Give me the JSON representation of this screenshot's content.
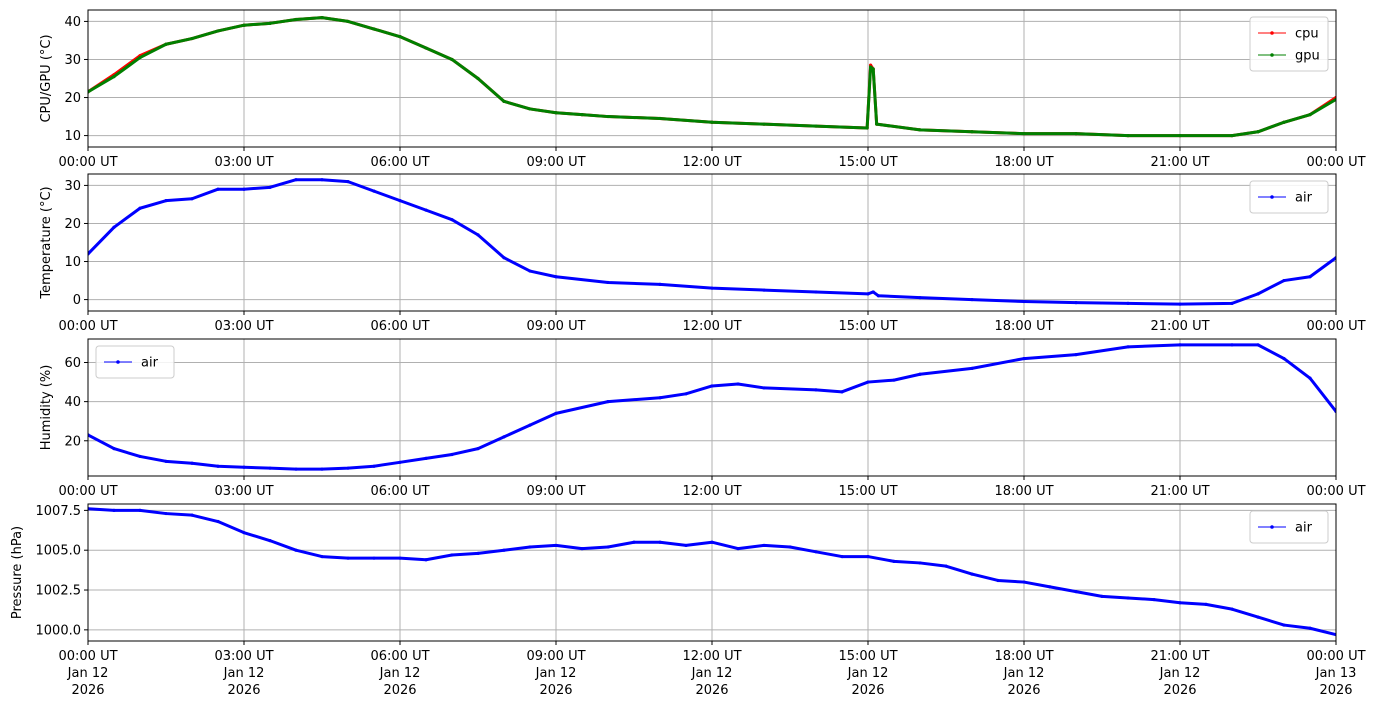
{
  "chart_data": [
    {
      "type": "line",
      "ylabel": "CPU/GPU (°C)",
      "xlim": [
        "2026-01-12T00:00",
        "2026-01-13T00:00"
      ],
      "ylim": [
        7,
        43
      ],
      "yticks": [
        10,
        20,
        30,
        40
      ],
      "grid": true,
      "legend": "top-right",
      "series": [
        {
          "name": "cpu",
          "color": "#ff0000",
          "x": [
            "2026-01-12T00:00",
            "2026-01-12T00:30",
            "2026-01-12T01:00",
            "2026-01-12T01:30",
            "2026-01-12T02:00",
            "2026-01-12T02:30",
            "2026-01-12T03:00",
            "2026-01-12T03:30",
            "2026-01-12T04:00",
            "2026-01-12T04:30",
            "2026-01-12T05:00",
            "2026-01-12T05:30",
            "2026-01-12T06:00",
            "2026-01-12T06:30",
            "2026-01-12T07:00",
            "2026-01-12T07:30",
            "2026-01-12T08:00",
            "2026-01-12T08:30",
            "2026-01-12T09:00",
            "2026-01-12T09:30",
            "2026-01-12T10:00",
            "2026-01-12T11:00",
            "2026-01-12T12:00",
            "2026-01-12T13:00",
            "2026-01-12T14:00",
            "2026-01-12T14:59",
            "2026-01-12T15:03",
            "2026-01-12T15:06",
            "2026-01-12T15:10",
            "2026-01-12T16:00",
            "2026-01-12T17:00",
            "2026-01-12T18:00",
            "2026-01-12T19:00",
            "2026-01-12T20:00",
            "2026-01-12T21:00",
            "2026-01-12T22:00",
            "2026-01-12T22:30",
            "2026-01-12T23:00",
            "2026-01-12T23:30",
            "2026-01-13T00:00"
          ],
          "values": [
            21.5,
            26,
            31,
            34,
            35.5,
            37.5,
            39,
            39.5,
            40.5,
            41,
            40,
            38,
            36,
            33,
            30,
            25,
            19,
            17,
            16,
            15.5,
            15,
            14.5,
            13.5,
            13,
            12.5,
            12,
            28.5,
            27.5,
            13,
            11.5,
            11,
            10.5,
            10.5,
            10,
            10,
            10,
            11,
            13.5,
            15.5,
            20
          ]
        },
        {
          "name": "gpu",
          "color": "#008000",
          "x": [
            "2026-01-12T00:00",
            "2026-01-12T00:30",
            "2026-01-12T01:00",
            "2026-01-12T01:30",
            "2026-01-12T02:00",
            "2026-01-12T02:30",
            "2026-01-12T03:00",
            "2026-01-12T03:30",
            "2026-01-12T04:00",
            "2026-01-12T04:30",
            "2026-01-12T05:00",
            "2026-01-12T05:30",
            "2026-01-12T06:00",
            "2026-01-12T06:30",
            "2026-01-12T07:00",
            "2026-01-12T07:30",
            "2026-01-12T08:00",
            "2026-01-12T08:30",
            "2026-01-12T09:00",
            "2026-01-12T09:30",
            "2026-01-12T10:00",
            "2026-01-12T11:00",
            "2026-01-12T12:00",
            "2026-01-12T13:00",
            "2026-01-12T14:00",
            "2026-01-12T14:59",
            "2026-01-12T15:03",
            "2026-01-12T15:06",
            "2026-01-12T15:10",
            "2026-01-12T16:00",
            "2026-01-12T17:00",
            "2026-01-12T18:00",
            "2026-01-12T19:00",
            "2026-01-12T20:00",
            "2026-01-12T21:00",
            "2026-01-12T22:00",
            "2026-01-12T22:30",
            "2026-01-12T23:00",
            "2026-01-12T23:30",
            "2026-01-13T00:00"
          ],
          "values": [
            21.5,
            25.5,
            30.5,
            34,
            35.5,
            37.5,
            39,
            39.5,
            40.5,
            41,
            40,
            38,
            36,
            33,
            30,
            25,
            19,
            17,
            16,
            15.5,
            15,
            14.5,
            13.5,
            13,
            12.5,
            12,
            28,
            27.5,
            13,
            11.5,
            11,
            10.5,
            10.5,
            10,
            10,
            10,
            11,
            13.5,
            15.5,
            19.5
          ]
        }
      ]
    },
    {
      "type": "line",
      "ylabel": "Temperature (°C)",
      "xlim": [
        "2026-01-12T00:00",
        "2026-01-13T00:00"
      ],
      "ylim": [
        -3,
        33
      ],
      "yticks": [
        0,
        10,
        20,
        30
      ],
      "grid": true,
      "legend": "top-right",
      "series": [
        {
          "name": "air",
          "color": "#0000ff",
          "x": [
            "2026-01-12T00:00",
            "2026-01-12T00:30",
            "2026-01-12T01:00",
            "2026-01-12T01:30",
            "2026-01-12T02:00",
            "2026-01-12T02:30",
            "2026-01-12T03:00",
            "2026-01-12T03:30",
            "2026-01-12T04:00",
            "2026-01-12T04:30",
            "2026-01-12T05:00",
            "2026-01-12T05:30",
            "2026-01-12T06:00",
            "2026-01-12T06:30",
            "2026-01-12T07:00",
            "2026-01-12T07:30",
            "2026-01-12T08:00",
            "2026-01-12T08:30",
            "2026-01-12T09:00",
            "2026-01-12T10:00",
            "2026-01-12T11:00",
            "2026-01-12T12:00",
            "2026-01-12T13:00",
            "2026-01-12T14:00",
            "2026-01-12T15:00",
            "2026-01-12T15:06",
            "2026-01-12T15:12",
            "2026-01-12T16:00",
            "2026-01-12T17:00",
            "2026-01-12T18:00",
            "2026-01-12T19:00",
            "2026-01-12T20:00",
            "2026-01-12T21:00",
            "2026-01-12T22:00",
            "2026-01-12T22:30",
            "2026-01-12T23:00",
            "2026-01-12T23:30",
            "2026-01-13T00:00"
          ],
          "values": [
            12,
            19,
            24,
            26,
            26.5,
            29,
            29,
            29.5,
            31.5,
            31.5,
            31,
            28.5,
            26,
            23.5,
            21,
            17,
            11,
            7.5,
            6,
            4.5,
            4,
            3,
            2.5,
            2,
            1.5,
            2,
            1,
            0.5,
            0,
            -0.5,
            -0.8,
            -1,
            -1.2,
            -1,
            1.5,
            5,
            6,
            11
          ]
        }
      ]
    },
    {
      "type": "line",
      "ylabel": "Humidity (%)",
      "xlim": [
        "2026-01-12T00:00",
        "2026-01-13T00:00"
      ],
      "ylim": [
        2,
        72
      ],
      "yticks": [
        20,
        40,
        60
      ],
      "grid": true,
      "legend": "top-left",
      "series": [
        {
          "name": "air",
          "color": "#0000ff",
          "x": [
            "2026-01-12T00:00",
            "2026-01-12T00:30",
            "2026-01-12T01:00",
            "2026-01-12T01:30",
            "2026-01-12T02:00",
            "2026-01-12T02:30",
            "2026-01-12T03:00",
            "2026-01-12T03:30",
            "2026-01-12T04:00",
            "2026-01-12T04:30",
            "2026-01-12T05:00",
            "2026-01-12T05:30",
            "2026-01-12T06:00",
            "2026-01-12T06:30",
            "2026-01-12T07:00",
            "2026-01-12T07:30",
            "2026-01-12T08:00",
            "2026-01-12T08:30",
            "2026-01-12T09:00",
            "2026-01-12T10:00",
            "2026-01-12T11:00",
            "2026-01-12T11:30",
            "2026-01-12T12:00",
            "2026-01-12T12:30",
            "2026-01-12T13:00",
            "2026-01-12T14:00",
            "2026-01-12T14:30",
            "2026-01-12T15:00",
            "2026-01-12T15:30",
            "2026-01-12T16:00",
            "2026-01-12T17:00",
            "2026-01-12T18:00",
            "2026-01-12T19:00",
            "2026-01-12T20:00",
            "2026-01-12T21:00",
            "2026-01-12T22:00",
            "2026-01-12T22:30",
            "2026-01-12T23:00",
            "2026-01-12T23:30",
            "2026-01-13T00:00"
          ],
          "values": [
            23,
            16,
            12,
            9.5,
            8.5,
            7,
            6.5,
            6,
            5.5,
            5.5,
            6,
            7,
            9,
            11,
            13,
            16,
            22,
            28,
            34,
            40,
            42,
            44,
            48,
            49,
            47,
            46,
            45,
            50,
            51,
            54,
            57,
            62,
            64,
            68,
            69,
            69,
            69,
            62,
            52,
            35
          ]
        }
      ]
    },
    {
      "type": "line",
      "ylabel": "Pressure (hPa)",
      "xlim": [
        "2026-01-12T00:00",
        "2026-01-13T00:00"
      ],
      "ylim": [
        999.3,
        1007.9
      ],
      "yticks": [
        1000.0,
        1002.5,
        1005.0,
        1007.5
      ],
      "yticklabels": [
        "1000.0",
        "1002.5",
        "1005.0",
        "1007.5"
      ],
      "grid": true,
      "legend": "top-right",
      "series": [
        {
          "name": "air",
          "color": "#0000ff",
          "x": [
            "2026-01-12T00:00",
            "2026-01-12T00:30",
            "2026-01-12T01:00",
            "2026-01-12T01:30",
            "2026-01-12T02:00",
            "2026-01-12T02:30",
            "2026-01-12T03:00",
            "2026-01-12T03:30",
            "2026-01-12T04:00",
            "2026-01-12T04:30",
            "2026-01-12T05:00",
            "2026-01-12T05:30",
            "2026-01-12T06:00",
            "2026-01-12T06:30",
            "2026-01-12T07:00",
            "2026-01-12T07:30",
            "2026-01-12T08:00",
            "2026-01-12T08:30",
            "2026-01-12T09:00",
            "2026-01-12T09:30",
            "2026-01-12T10:00",
            "2026-01-12T10:30",
            "2026-01-12T11:00",
            "2026-01-12T11:30",
            "2026-01-12T12:00",
            "2026-01-12T12:30",
            "2026-01-12T13:00",
            "2026-01-12T13:30",
            "2026-01-12T14:00",
            "2026-01-12T14:30",
            "2026-01-12T15:00",
            "2026-01-12T15:30",
            "2026-01-12T16:00",
            "2026-01-12T16:30",
            "2026-01-12T17:00",
            "2026-01-12T17:30",
            "2026-01-12T18:00",
            "2026-01-12T18:30",
            "2026-01-12T19:00",
            "2026-01-12T19:30",
            "2026-01-12T20:00",
            "2026-01-12T20:30",
            "2026-01-12T21:00",
            "2026-01-12T21:30",
            "2026-01-12T22:00",
            "2026-01-12T22:30",
            "2026-01-12T23:00",
            "2026-01-12T23:30",
            "2026-01-13T00:00"
          ],
          "values": [
            1007.6,
            1007.5,
            1007.5,
            1007.3,
            1007.2,
            1006.8,
            1006.1,
            1005.6,
            1005.0,
            1004.6,
            1004.5,
            1004.5,
            1004.5,
            1004.4,
            1004.7,
            1004.8,
            1005.0,
            1005.2,
            1005.3,
            1005.1,
            1005.2,
            1005.5,
            1005.5,
            1005.3,
            1005.5,
            1005.1,
            1005.3,
            1005.2,
            1004.9,
            1004.6,
            1004.6,
            1004.3,
            1004.2,
            1004.0,
            1003.5,
            1003.1,
            1003.0,
            1002.7,
            1002.4,
            1002.1,
            1002.0,
            1001.9,
            1001.7,
            1001.6,
            1001.3,
            1000.8,
            1000.3,
            1000.1,
            999.7
          ]
        }
      ]
    }
  ],
  "x_tick_labels": [
    "00:00 UT",
    "03:00 UT",
    "06:00 UT",
    "09:00 UT",
    "12:00 UT",
    "15:00 UT",
    "18:00 UT",
    "21:00 UT",
    "00:00 UT"
  ],
  "x_tick_dates": [
    "Jan 12",
    "Jan 12",
    "Jan 12",
    "Jan 12",
    "Jan 12",
    "Jan 12",
    "Jan 12",
    "Jan 12",
    "Jan 13"
  ],
  "x_tick_years": [
    "2026",
    "2026",
    "2026",
    "2026",
    "2026",
    "2026",
    "2026",
    "2026",
    "2026"
  ]
}
